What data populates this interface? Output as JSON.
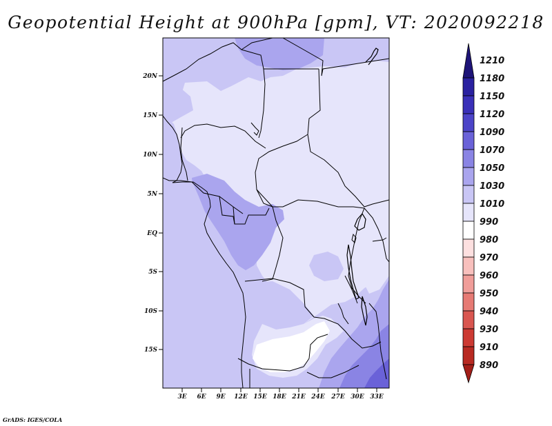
{
  "title": "Geopotential Height at 900hPa [gpm], VT: 2020092218",
  "credit": "GrADS: IGES/COLA",
  "lat_labels": [
    "20N",
    "15N",
    "10N",
    "5N",
    "EQ",
    "5S",
    "10S",
    "15S"
  ],
  "lon_labels": [
    "3E",
    "6E",
    "9E",
    "12E",
    "15E",
    "18E",
    "21E",
    "24E",
    "27E",
    "30E",
    "33E"
  ],
  "colorbar": {
    "levels": [
      "1210",
      "1180",
      "1150",
      "1120",
      "1090",
      "1070",
      "1050",
      "1030",
      "1010",
      "990",
      "980",
      "970",
      "960",
      "950",
      "940",
      "930",
      "910",
      "890"
    ],
    "colors": [
      "#1e1478",
      "#2a21a0",
      "#3a30b8",
      "#4c44c8",
      "#6a62d8",
      "#8a84e4",
      "#aaa5ee",
      "#c9c6f5",
      "#e6e5fb",
      "#ffffff",
      "#fde0e0",
      "#f8c0bd",
      "#f09d99",
      "#e67a74",
      "#d95650",
      "#cc3a33",
      "#b82a22",
      "#a31e18"
    ]
  },
  "map_fill": {
    "c1010": "#e6e5fb",
    "c1030": "#c9c6f5",
    "c1050": "#aaa5ee",
    "c1070": "#8a84e4",
    "c1090": "#6a62d8"
  }
}
